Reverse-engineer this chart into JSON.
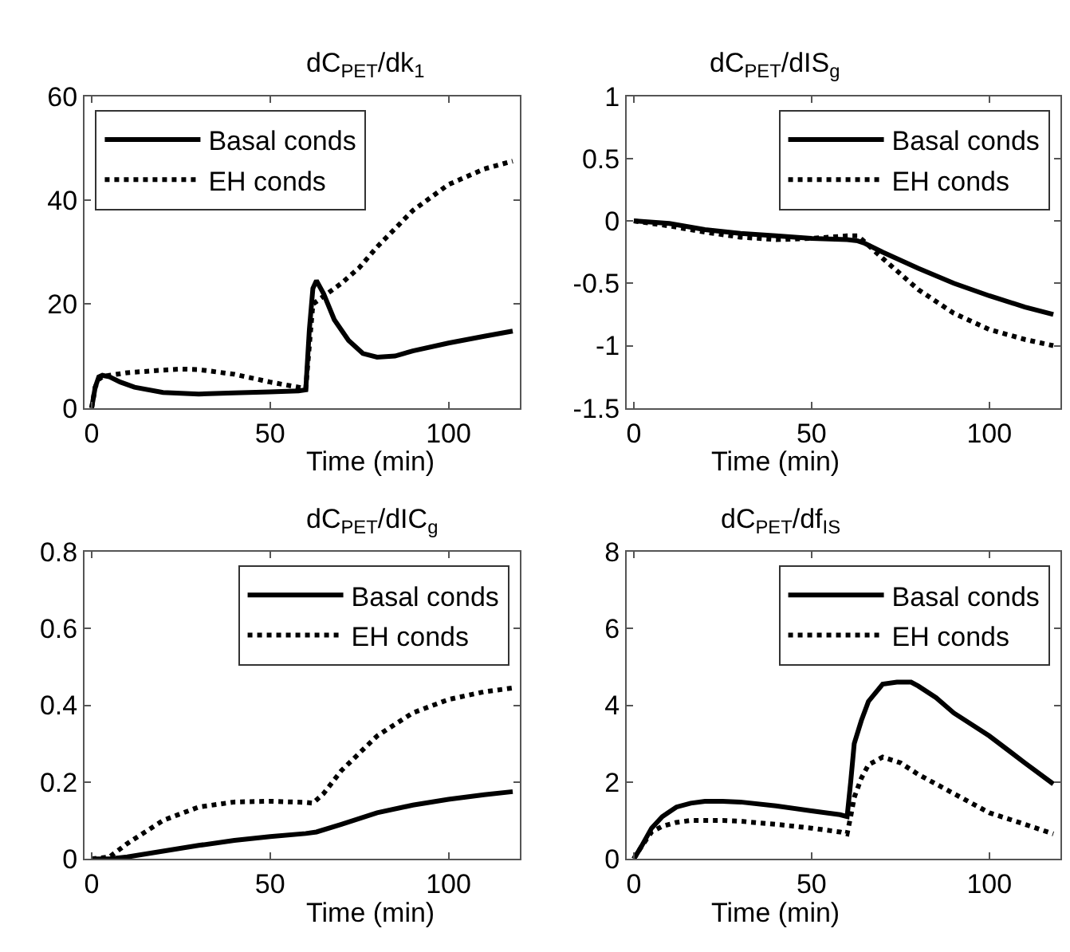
{
  "chart_data": [
    {
      "type": "line",
      "title": "dC$_{PET}$/dk$_{1}$",
      "xlabel": "Time (min)",
      "xlim": [
        -2,
        120
      ],
      "xticks": [
        0,
        50,
        100
      ],
      "ylim": [
        0,
        60
      ],
      "yticks": [
        0,
        20,
        40,
        60
      ],
      "legend": "top left",
      "series": [
        {
          "name": "Basal conds",
          "color": "#000000",
          "line_style": "solid",
          "x": [
            0,
            0.5,
            1,
            2,
            3,
            5,
            8,
            12,
            20,
            30,
            40,
            50,
            58,
            60,
            61,
            62,
            63,
            65,
            68,
            72,
            76,
            80,
            85,
            90,
            100,
            110,
            118
          ],
          "values": [
            0,
            2,
            4,
            6,
            6.3,
            6,
            5,
            4,
            3,
            2.7,
            2.9,
            3.1,
            3.3,
            3.5,
            15,
            23,
            24.5,
            22,
            17,
            13,
            10.5,
            9.8,
            10,
            11,
            12.5,
            13.8,
            14.8
          ]
        },
        {
          "name": "EH conds",
          "color": "#000000",
          "line_style": "dotted",
          "x": [
            0,
            0.5,
            1,
            2,
            3,
            5,
            10,
            20,
            25,
            30,
            40,
            50,
            58,
            60,
            61,
            62,
            64,
            66,
            70,
            75,
            80,
            90,
            100,
            110,
            118
          ],
          "values": [
            0,
            2,
            4,
            5.5,
            6,
            6.3,
            6.8,
            7.3,
            7.5,
            7.4,
            6.5,
            5,
            4,
            3.7,
            12,
            20,
            21,
            22,
            24,
            27,
            31,
            38,
            43,
            46,
            47.5
          ]
        }
      ]
    },
    {
      "type": "line",
      "title": "dC$_{PET}$/dIS$_{g}$",
      "xlabel": "Time (min)",
      "xlim": [
        -2,
        120
      ],
      "xticks": [
        0,
        50,
        100
      ],
      "ylim": [
        -1.5,
        1
      ],
      "yticks": [
        -1.5,
        -1,
        -0.5,
        0,
        0.5,
        1
      ],
      "legend": "top right",
      "series": [
        {
          "name": "Basal conds",
          "color": "#000000",
          "line_style": "solid",
          "x": [
            0,
            10,
            20,
            30,
            40,
            50,
            60,
            63,
            65,
            70,
            80,
            90,
            100,
            110,
            118
          ],
          "values": [
            0,
            -0.02,
            -0.07,
            -0.1,
            -0.12,
            -0.14,
            -0.15,
            -0.16,
            -0.18,
            -0.25,
            -0.38,
            -0.5,
            -0.6,
            -0.69,
            -0.75
          ]
        },
        {
          "name": "EH conds",
          "color": "#000000",
          "line_style": "dotted",
          "x": [
            0,
            10,
            20,
            30,
            40,
            50,
            60,
            63,
            65,
            70,
            80,
            90,
            100,
            110,
            118
          ],
          "values": [
            0,
            -0.04,
            -0.09,
            -0.13,
            -0.15,
            -0.14,
            -0.12,
            -0.12,
            -0.17,
            -0.3,
            -0.55,
            -0.74,
            -0.87,
            -0.95,
            -1.0
          ]
        }
      ]
    },
    {
      "type": "line",
      "title": "dC$_{PET}$/dIC$_{g}$",
      "xlabel": "Time (min)",
      "xlim": [
        -2,
        120
      ],
      "xticks": [
        0,
        50,
        100
      ],
      "ylim": [
        0,
        0.8
      ],
      "yticks": [
        0,
        0.2,
        0.4,
        0.6,
        0.8
      ],
      "legend": "top right",
      "series": [
        {
          "name": "Basal conds",
          "color": "#000000",
          "line_style": "solid",
          "x": [
            0,
            5,
            10,
            20,
            30,
            40,
            50,
            60,
            63,
            70,
            80,
            90,
            100,
            110,
            118
          ],
          "values": [
            0,
            0,
            0.005,
            0.02,
            0.035,
            0.048,
            0.058,
            0.066,
            0.07,
            0.09,
            0.12,
            0.14,
            0.155,
            0.167,
            0.175
          ]
        },
        {
          "name": "EH conds",
          "color": "#000000",
          "line_style": "dotted",
          "x": [
            0,
            5,
            10,
            20,
            30,
            40,
            50,
            60,
            62,
            65,
            70,
            80,
            90,
            100,
            110,
            118
          ],
          "values": [
            0,
            0.005,
            0.04,
            0.1,
            0.135,
            0.148,
            0.15,
            0.147,
            0.145,
            0.17,
            0.23,
            0.32,
            0.38,
            0.415,
            0.435,
            0.445
          ]
        }
      ]
    },
    {
      "type": "line",
      "title": "dC$_{PET}$/df$_{IS}$",
      "xlabel": "Time (min)",
      "xlim": [
        -2,
        120
      ],
      "xticks": [
        0,
        50,
        100
      ],
      "ylim": [
        0,
        8
      ],
      "yticks": [
        0,
        2,
        4,
        6,
        8
      ],
      "legend": "top right",
      "series": [
        {
          "name": "Basal conds",
          "color": "#000000",
          "line_style": "solid",
          "x": [
            0,
            2,
            5,
            8,
            12,
            16,
            20,
            25,
            30,
            40,
            50,
            58,
            60,
            61,
            62,
            64,
            66,
            70,
            74,
            78,
            80,
            85,
            90,
            100,
            110,
            118
          ],
          "values": [
            0,
            0.3,
            0.8,
            1.1,
            1.35,
            1.45,
            1.5,
            1.5,
            1.48,
            1.38,
            1.25,
            1.15,
            1.1,
            2,
            3,
            3.6,
            4.1,
            4.55,
            4.6,
            4.6,
            4.5,
            4.2,
            3.8,
            3.2,
            2.5,
            1.95
          ]
        },
        {
          "name": "EH conds",
          "color": "#000000",
          "line_style": "dotted",
          "x": [
            0,
            2,
            5,
            8,
            12,
            16,
            20,
            25,
            30,
            40,
            50,
            58,
            60,
            61,
            62,
            64,
            66,
            70,
            75,
            80,
            90,
            100,
            110,
            118
          ],
          "values": [
            0,
            0.3,
            0.7,
            0.85,
            0.95,
            1.0,
            1.0,
            1.0,
            0.98,
            0.9,
            0.8,
            0.7,
            0.65,
            1.1,
            1.6,
            2.1,
            2.45,
            2.65,
            2.5,
            2.2,
            1.7,
            1.2,
            0.9,
            0.65
          ]
        }
      ]
    }
  ]
}
